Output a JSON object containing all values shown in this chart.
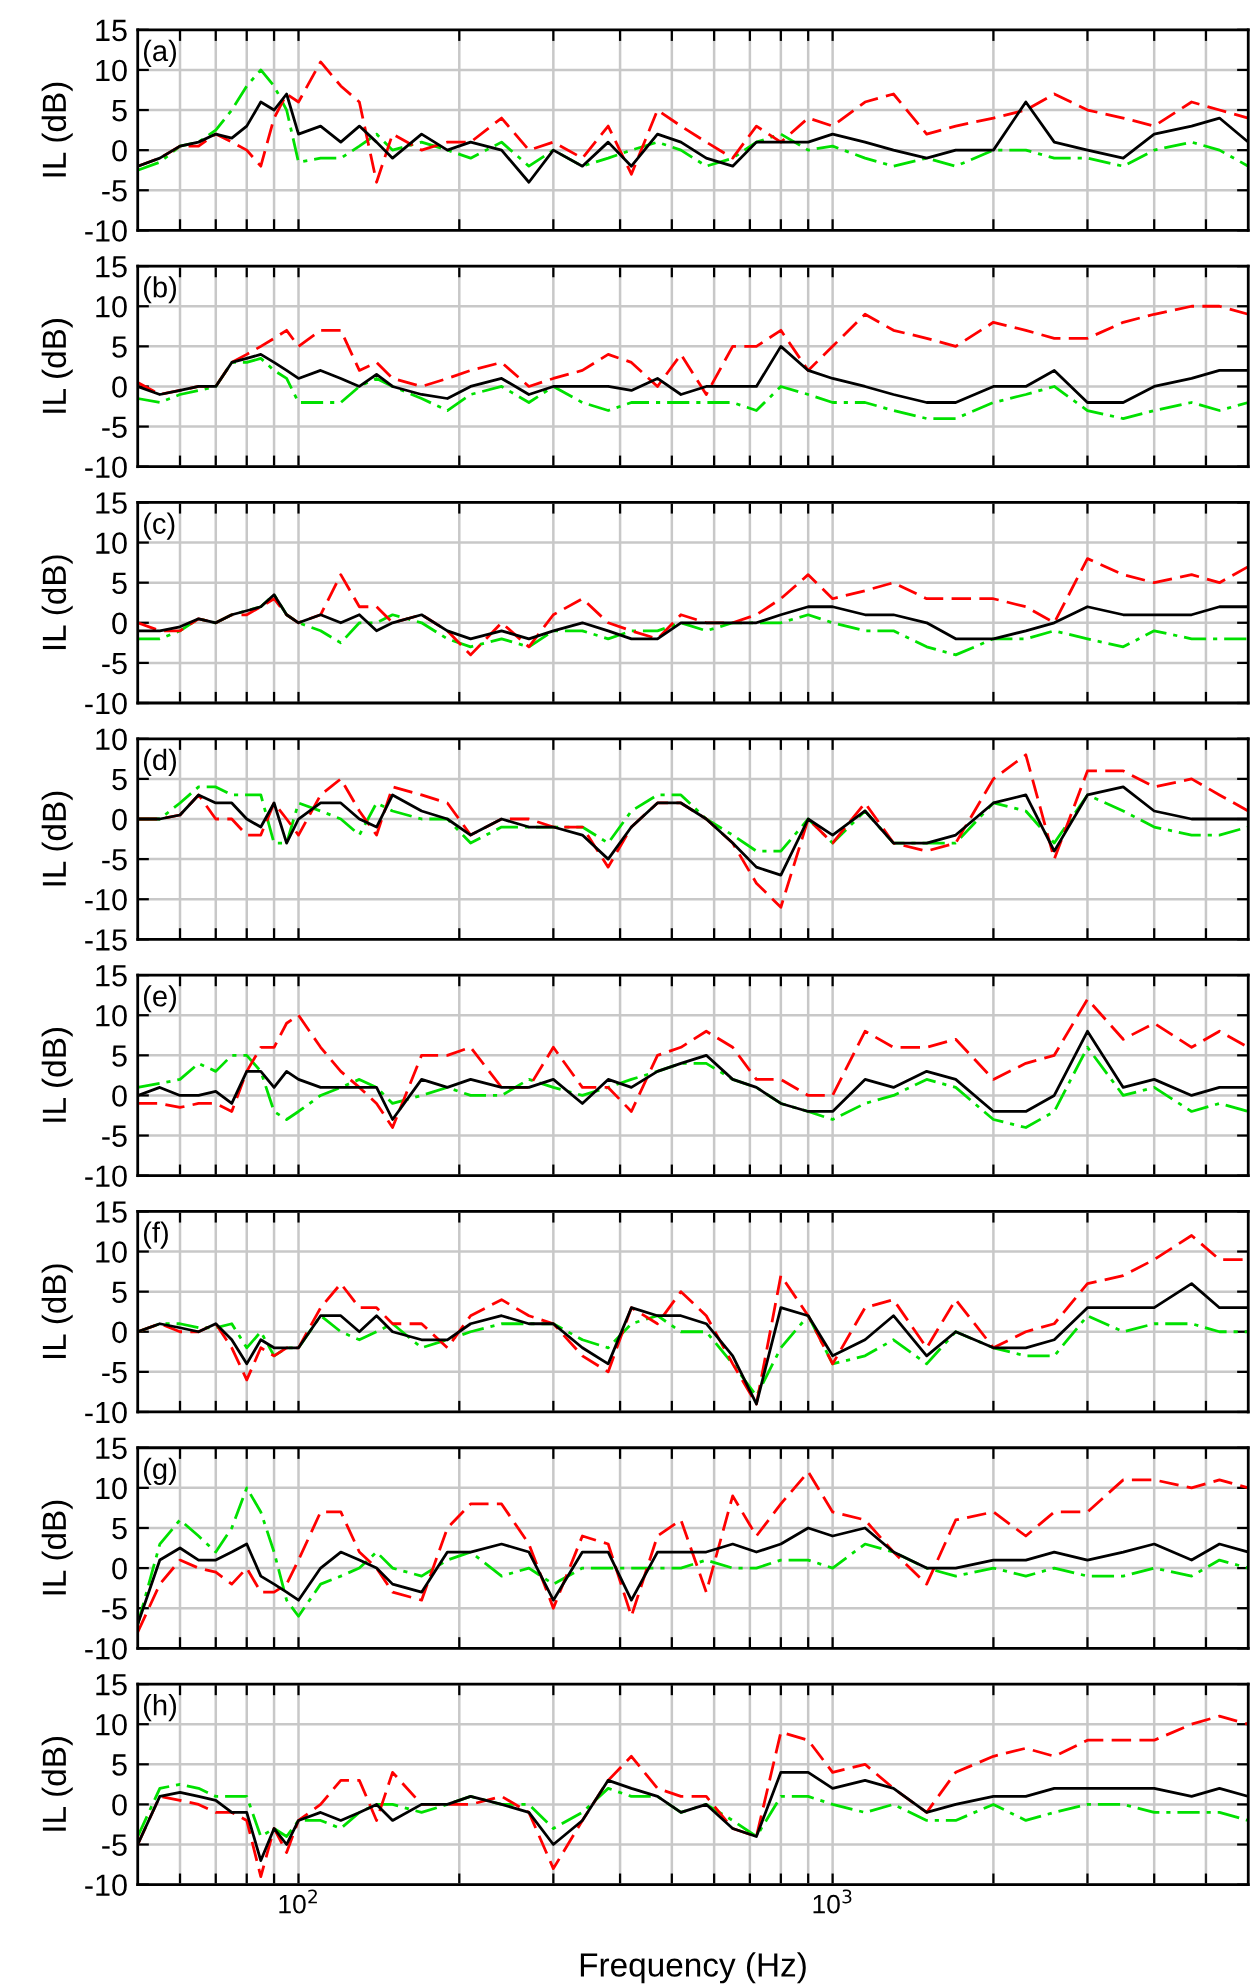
{
  "chart_data": [
    {
      "type": "line",
      "annotations": [
        "(a)"
      ],
      "ylabel": "IL (dB)",
      "log": "x",
      "grid": true,
      "tick_labels": "y",
      "xlim": [
        50,
        6000
      ],
      "ylim": [
        -10,
        15
      ],
      "yticks": [
        -10,
        -5,
        0,
        5,
        10,
        15
      ],
      "xticks": [
        60,
        70,
        80,
        90,
        100,
        200,
        300,
        400,
        500,
        600,
        700,
        800,
        900,
        1000,
        2000,
        3000,
        4000,
        5000
      ],
      "x": [
        50,
        55,
        60,
        65,
        70,
        75,
        80,
        85,
        90,
        95,
        100,
        110,
        120,
        130,
        140,
        150,
        170,
        190,
        210,
        240,
        270,
        300,
        340,
        380,
        420,
        470,
        520,
        580,
        650,
        720,
        800,
        900,
        1000,
        1150,
        1300,
        1500,
        1700,
        2000,
        2300,
        2600,
        3000,
        3500,
        4000,
        4700,
        5300,
        6000
      ],
      "series": [
        {
          "color": "#00e000",
          "line_style": "dashdot",
          "values": [
            -2.5,
            -1.5,
            0.5,
            1,
            2.5,
            5,
            8,
            10,
            8,
            5,
            -1.5,
            -1,
            -1,
            0.5,
            2,
            0,
            1,
            0,
            -1,
            1,
            -2,
            0,
            -2,
            -1,
            0,
            1,
            0,
            -2,
            -1,
            1,
            2,
            0,
            0.5,
            -1,
            -2,
            -1,
            -2,
            0,
            0,
            -1,
            -1,
            -2,
            0,
            1,
            0,
            -2
          ]
        },
        {
          "color": "#ff0000",
          "line_style": "dashed",
          "values": [
            -2,
            -1,
            0.5,
            0.5,
            2,
            1,
            0,
            -2,
            4,
            7,
            6,
            11,
            8,
            6,
            -4,
            2,
            0,
            1,
            1,
            4,
            0,
            1,
            -1,
            3,
            -3,
            5,
            3,
            1,
            -1,
            3,
            1,
            4,
            3,
            6,
            7,
            2,
            3,
            4,
            5,
            7,
            5,
            4,
            3,
            6,
            5,
            4
          ]
        },
        {
          "color": "#000000",
          "line_style": "solid",
          "values": [
            -2,
            -1,
            0.5,
            1,
            2,
            1.5,
            3,
            6,
            5,
            7,
            2,
            3,
            1,
            3,
            1,
            -1,
            2,
            0,
            1,
            0,
            -4,
            0,
            -2,
            1,
            -2,
            2,
            1,
            -1,
            -2,
            1,
            1,
            1,
            2,
            1,
            0,
            -1,
            0,
            0,
            6,
            1,
            0,
            -1,
            2,
            3,
            4,
            1
          ]
        }
      ]
    },
    {
      "type": "line",
      "annotations": [
        "(b)"
      ],
      "ylabel": "IL (dB)",
      "log": "x",
      "grid": true,
      "tick_labels": "y",
      "xlim": [
        50,
        6000
      ],
      "ylim": [
        -10,
        15
      ],
      "yticks": [
        -10,
        -5,
        0,
        5,
        10,
        15
      ],
      "xticks": [
        60,
        70,
        80,
        90,
        100,
        200,
        300,
        400,
        500,
        600,
        700,
        800,
        900,
        1000,
        2000,
        3000,
        4000,
        5000
      ],
      "x": [
        50,
        55,
        60,
        65,
        70,
        75,
        80,
        85,
        90,
        95,
        100,
        110,
        120,
        130,
        140,
        150,
        170,
        190,
        210,
        240,
        270,
        300,
        340,
        380,
        420,
        470,
        520,
        580,
        650,
        720,
        800,
        900,
        1000,
        1150,
        1300,
        1500,
        1700,
        2000,
        2300,
        2600,
        3000,
        3500,
        4000,
        4700,
        5300,
        6000
      ],
      "series": [
        {
          "color": "#00e000",
          "line_style": "dashdot",
          "values": [
            -1.5,
            -2,
            -1,
            -0.5,
            0,
            3,
            3,
            3.5,
            2,
            1,
            -2,
            -2,
            -2,
            0,
            1,
            0,
            -1.5,
            -3,
            -1,
            0,
            -2,
            0,
            -2,
            -3,
            -2,
            -2,
            -2,
            -2,
            -2,
            -3,
            0,
            -1,
            -2,
            -2,
            -3,
            -4,
            -4,
            -2,
            -1,
            0,
            -3,
            -4,
            -3,
            -2,
            -3,
            -2
          ]
        },
        {
          "color": "#ff0000",
          "line_style": "dashed",
          "values": [
            0.5,
            -1,
            -0.5,
            0,
            0,
            3,
            4,
            5,
            6,
            7,
            5,
            7,
            7,
            2,
            3,
            1,
            0,
            1,
            2,
            3,
            0,
            1,
            2,
            4,
            3,
            0,
            4,
            -1,
            5,
            5,
            7,
            2,
            5,
            9,
            7,
            6,
            5,
            8,
            7,
            6,
            6,
            8,
            9,
            10,
            10,
            9
          ]
        },
        {
          "color": "#000000",
          "line_style": "solid",
          "values": [
            0,
            -1,
            -0.5,
            0,
            0,
            3,
            3.5,
            4,
            3,
            2,
            1,
            2,
            1,
            0,
            1.5,
            0,
            -1,
            -1.5,
            0,
            1,
            -1,
            0,
            0,
            0,
            -0.5,
            1,
            -1,
            0,
            0,
            0,
            5,
            2,
            1,
            0,
            -1,
            -2,
            -2,
            0,
            0,
            2,
            -2,
            -2,
            0,
            1,
            2,
            2
          ]
        }
      ]
    },
    {
      "type": "line",
      "annotations": [
        "(c)"
      ],
      "ylabel": "IL (dB)",
      "log": "x",
      "grid": true,
      "tick_labels": "y",
      "xlim": [
        50,
        6000
      ],
      "ylim": [
        -10,
        15
      ],
      "yticks": [
        -10,
        -5,
        0,
        5,
        10,
        15
      ],
      "xticks": [
        60,
        70,
        80,
        90,
        100,
        200,
        300,
        400,
        500,
        600,
        700,
        800,
        900,
        1000,
        2000,
        3000,
        4000,
        5000
      ],
      "x": [
        50,
        55,
        60,
        65,
        70,
        75,
        80,
        85,
        90,
        95,
        100,
        110,
        120,
        130,
        140,
        150,
        170,
        190,
        210,
        240,
        270,
        300,
        340,
        380,
        420,
        470,
        520,
        580,
        650,
        720,
        800,
        900,
        1000,
        1150,
        1300,
        1500,
        1700,
        2000,
        2300,
        2600,
        3000,
        3500,
        4000,
        4700,
        5300,
        6000
      ],
      "series": [
        {
          "color": "#00e000",
          "line_style": "dashdot",
          "values": [
            -2,
            -2,
            -1,
            0.5,
            0,
            1,
            1.5,
            2,
            3.5,
            1,
            0,
            -1,
            -2.5,
            0,
            0,
            1,
            0,
            -2,
            -3,
            -2,
            -3,
            -1,
            -1,
            -2,
            -1,
            -1,
            0,
            -1,
            0,
            0,
            0,
            1,
            0,
            -1,
            -1,
            -3,
            -4,
            -2,
            -2,
            -1,
            -2,
            -3,
            -1,
            -2,
            -2,
            -2
          ]
        },
        {
          "color": "#ff0000",
          "line_style": "dashed",
          "values": [
            0,
            -1,
            -1,
            0.5,
            0,
            1,
            1,
            2,
            3,
            1,
            0,
            1,
            6,
            2,
            2,
            0,
            1,
            -1,
            -4,
            0,
            -3,
            1,
            3,
            0,
            -1,
            -2,
            1,
            0,
            0,
            1,
            3,
            6,
            3,
            4,
            5,
            3,
            3,
            3,
            2,
            0,
            8,
            6,
            5,
            6,
            5,
            7
          ]
        },
        {
          "color": "#000000",
          "line_style": "solid",
          "values": [
            -1,
            -1,
            -0.5,
            0.5,
            0,
            1,
            1.5,
            2,
            3.5,
            1,
            0,
            1,
            0,
            1,
            -1,
            0,
            1,
            -1,
            -2,
            -1,
            -2,
            -1,
            0,
            -1,
            -2,
            -2,
            0,
            0,
            0,
            0,
            1,
            2,
            2,
            1,
            1,
            0,
            -2,
            -2,
            -1,
            0,
            2,
            1,
            1,
            1,
            2,
            2
          ]
        }
      ]
    },
    {
      "type": "line",
      "annotations": [
        "(d)"
      ],
      "ylabel": "IL (dB)",
      "log": "x",
      "grid": true,
      "tick_labels": "y",
      "xlim": [
        50,
        6000
      ],
      "ylim": [
        -15,
        10
      ],
      "yticks": [
        -15,
        -10,
        -5,
        0,
        5,
        10
      ],
      "xticks": [
        60,
        70,
        80,
        90,
        100,
        200,
        300,
        400,
        500,
        600,
        700,
        800,
        900,
        1000,
        2000,
        3000,
        4000,
        5000
      ],
      "x": [
        50,
        55,
        60,
        65,
        70,
        75,
        80,
        85,
        90,
        95,
        100,
        110,
        120,
        130,
        140,
        150,
        170,
        190,
        210,
        240,
        270,
        300,
        340,
        380,
        420,
        470,
        520,
        580,
        650,
        720,
        800,
        900,
        1000,
        1150,
        1300,
        1500,
        1700,
        2000,
        2300,
        2600,
        3000,
        3500,
        4000,
        4700,
        5300,
        6000
      ],
      "series": [
        {
          "color": "#00e000",
          "line_style": "dashdot",
          "values": [
            0,
            0,
            2,
            4,
            4,
            3,
            3,
            3,
            -3,
            -3,
            2,
            1,
            0,
            -2,
            2,
            1,
            0,
            0,
            -3,
            -1,
            -1,
            -1,
            -1,
            -3,
            1,
            3,
            3,
            0,
            -2,
            -4,
            -4,
            0,
            -3,
            1,
            -3,
            -3,
            -3,
            2,
            1,
            -3,
            3,
            1,
            -1,
            -2,
            -2,
            -1
          ]
        },
        {
          "color": "#ff0000",
          "line_style": "dashed",
          "values": [
            0,
            0,
            0.5,
            3,
            0,
            0,
            -2,
            -2,
            2,
            0,
            -2,
            3,
            5,
            1,
            -2,
            4,
            3,
            2,
            -2,
            0,
            0,
            -1,
            -1,
            -6,
            -1,
            2,
            2,
            0,
            -3,
            -8,
            -11,
            0,
            -3,
            2,
            -3,
            -4,
            -3,
            5,
            8,
            -5,
            6,
            6,
            4,
            5,
            3,
            1
          ]
        },
        {
          "color": "#000000",
          "line_style": "solid",
          "values": [
            0,
            0,
            0.5,
            3,
            2,
            2,
            0,
            -1,
            2,
            -3,
            0,
            2,
            2,
            0,
            -1,
            3,
            1,
            0,
            -2,
            0,
            -1,
            -1,
            -2,
            -5,
            -1,
            2,
            2,
            0,
            -3,
            -6,
            -7,
            0,
            -2,
            1,
            -3,
            -3,
            -2,
            2,
            3,
            -4,
            3,
            4,
            1,
            0,
            0,
            0
          ]
        }
      ]
    },
    {
      "type": "line",
      "annotations": [
        "(e)"
      ],
      "ylabel": "IL (dB)",
      "log": "x",
      "grid": true,
      "tick_labels": "y",
      "xlim": [
        50,
        6000
      ],
      "ylim": [
        -10,
        15
      ],
      "yticks": [
        -10,
        -5,
        0,
        5,
        10,
        15
      ],
      "xticks": [
        60,
        70,
        80,
        90,
        100,
        200,
        300,
        400,
        500,
        600,
        700,
        800,
        900,
        1000,
        2000,
        3000,
        4000,
        5000
      ],
      "x": [
        50,
        55,
        60,
        65,
        70,
        75,
        80,
        85,
        90,
        95,
        100,
        110,
        120,
        130,
        140,
        150,
        170,
        190,
        210,
        240,
        270,
        300,
        340,
        380,
        420,
        470,
        520,
        580,
        650,
        720,
        800,
        900,
        1000,
        1150,
        1300,
        1500,
        1700,
        2000,
        2300,
        2600,
        3000,
        3500,
        4000,
        4700,
        5300,
        6000
      ],
      "series": [
        {
          "color": "#00e000",
          "line_style": "dashdot",
          "values": [
            1,
            1.5,
            2,
            4,
            3,
            5,
            5,
            3,
            -2,
            -3,
            -2,
            0,
            1,
            2,
            1,
            -1,
            0,
            1,
            0,
            0,
            2,
            1,
            0,
            1,
            2,
            3,
            4,
            4,
            2,
            1,
            -1,
            -2,
            -3,
            -1,
            0,
            2,
            1,
            -3,
            -4,
            -2,
            6,
            0,
            1,
            -2,
            -1,
            -2
          ]
        },
        {
          "color": "#ff0000",
          "line_style": "dashed",
          "values": [
            -1,
            -1,
            -1.5,
            -1,
            -1,
            -2,
            3,
            6,
            6,
            9,
            10,
            6,
            3,
            1,
            -1,
            -4,
            5,
            5,
            6,
            1,
            1,
            6,
            1,
            1,
            -2,
            5,
            6,
            8,
            6,
            2,
            2,
            0,
            0,
            8,
            6,
            6,
            7,
            2,
            4,
            5,
            12,
            7,
            9,
            6,
            8,
            6
          ]
        },
        {
          "color": "#000000",
          "line_style": "solid",
          "values": [
            0,
            1,
            0,
            0,
            0.5,
            -1,
            3,
            3,
            1,
            3,
            2,
            1,
            1,
            1,
            1,
            -3,
            2,
            1,
            2,
            1,
            1,
            2,
            -1,
            2,
            1,
            3,
            4,
            5,
            2,
            1,
            -1,
            -2,
            -2,
            2,
            1,
            3,
            2,
            -2,
            -2,
            0,
            8,
            1,
            2,
            0,
            1,
            1
          ]
        }
      ]
    },
    {
      "type": "line",
      "annotations": [
        "(f)"
      ],
      "ylabel": "IL (dB)",
      "log": "x",
      "grid": true,
      "tick_labels": "y",
      "xlim": [
        50,
        6000
      ],
      "ylim": [
        -10,
        15
      ],
      "yticks": [
        -10,
        -5,
        0,
        5,
        10,
        15
      ],
      "xticks": [
        60,
        70,
        80,
        90,
        100,
        200,
        300,
        400,
        500,
        600,
        700,
        800,
        900,
        1000,
        2000,
        3000,
        4000,
        5000
      ],
      "x": [
        50,
        55,
        60,
        65,
        70,
        75,
        80,
        85,
        90,
        95,
        100,
        110,
        120,
        130,
        140,
        150,
        170,
        190,
        210,
        240,
        270,
        300,
        340,
        380,
        420,
        470,
        520,
        580,
        650,
        720,
        800,
        900,
        1000,
        1150,
        1300,
        1500,
        1700,
        2000,
        2300,
        2600,
        3000,
        3500,
        4000,
        4700,
        5300,
        6000
      ],
      "series": [
        {
          "color": "#00e000",
          "line_style": "dashdot",
          "values": [
            0,
            1,
            1,
            0.5,
            0.5,
            1,
            -2,
            0,
            -3,
            -2,
            -2,
            2,
            0,
            -1,
            0,
            1,
            -2,
            -1,
            0,
            1,
            1,
            1,
            -1,
            -2,
            1,
            2,
            0,
            0,
            -4,
            -8,
            -2,
            2,
            -4,
            -3,
            -1,
            -4,
            0,
            -2,
            -3,
            -3,
            2,
            0,
            1,
            1,
            0,
            0
          ]
        },
        {
          "color": "#ff0000",
          "line_style": "dashed",
          "values": [
            0,
            1,
            0,
            0,
            1,
            -2,
            -6,
            -2,
            -3,
            -2,
            -2,
            3,
            6,
            3,
            3,
            1,
            1,
            -2,
            2,
            4,
            2,
            1,
            -3,
            -5,
            3,
            1,
            5,
            2,
            -4,
            -9,
            7,
            2,
            -4,
            3,
            4,
            -2,
            4,
            -2,
            0,
            1,
            6,
            7,
            9,
            12,
            9,
            9
          ]
        },
        {
          "color": "#000000",
          "line_style": "solid",
          "values": [
            0,
            1,
            0.5,
            0,
            1,
            -1,
            -4,
            -1,
            -2,
            -2,
            -2,
            2,
            2,
            0,
            2,
            0,
            -1,
            -1,
            1,
            2,
            1,
            1,
            -2,
            -4,
            3,
            2,
            2,
            1,
            -3,
            -9,
            3,
            2,
            -3,
            -1,
            2,
            -3,
            0,
            -2,
            -2,
            -1,
            3,
            3,
            3,
            6,
            3,
            3
          ]
        }
      ]
    },
    {
      "type": "line",
      "annotations": [
        "(g)"
      ],
      "ylabel": "IL (dB)",
      "log": "x",
      "grid": true,
      "tick_labels": "y",
      "xlim": [
        50,
        6000
      ],
      "ylim": [
        -10,
        15
      ],
      "yticks": [
        -10,
        -5,
        0,
        5,
        10,
        15
      ],
      "xticks": [
        60,
        70,
        80,
        90,
        100,
        200,
        300,
        400,
        500,
        600,
        700,
        800,
        900,
        1000,
        2000,
        3000,
        4000,
        5000
      ],
      "x": [
        50,
        55,
        60,
        65,
        70,
        75,
        80,
        85,
        90,
        95,
        100,
        110,
        120,
        130,
        140,
        150,
        170,
        190,
        210,
        240,
        270,
        300,
        340,
        380,
        420,
        470,
        520,
        580,
        650,
        720,
        800,
        900,
        1000,
        1150,
        1300,
        1500,
        1700,
        2000,
        2300,
        2600,
        3000,
        3500,
        4000,
        4700,
        5300,
        6000
      ],
      "series": [
        {
          "color": "#00e000",
          "line_style": "dashdot",
          "values": [
            -7,
            3,
            6,
            4,
            2,
            5,
            10,
            7,
            2,
            -4,
            -6,
            -2,
            -1,
            0,
            2,
            0,
            -1,
            1,
            2,
            -1,
            0,
            -2,
            0,
            0,
            0,
            0,
            0,
            1,
            0,
            0,
            1,
            1,
            0,
            3,
            2,
            0,
            -1,
            0,
            -1,
            0,
            -1,
            -1,
            0,
            -1,
            1,
            0
          ]
        },
        {
          "color": "#ff0000",
          "line_style": "dashed",
          "values": [
            -8,
            -2,
            1,
            0,
            -0.5,
            -2,
            0,
            -3,
            -3,
            -2,
            1,
            7,
            7,
            2,
            0,
            -3,
            -4,
            5,
            8,
            8,
            3,
            -5,
            4,
            3,
            -6,
            4,
            6,
            -3,
            9,
            4,
            8,
            12,
            7,
            6,
            2,
            -2,
            6,
            7,
            4,
            7,
            7,
            11,
            11,
            10,
            11,
            10
          ]
        },
        {
          "color": "#000000",
          "line_style": "solid",
          "values": [
            -7,
            1,
            2.5,
            1,
            1,
            2,
            3,
            -1,
            -2,
            -3,
            -4,
            0,
            2,
            1,
            0,
            -2,
            -3,
            2,
            2,
            3,
            2,
            -4,
            2,
            2,
            -4,
            2,
            2,
            2,
            3,
            2,
            3,
            5,
            4,
            5,
            2,
            0,
            0,
            1,
            1,
            2,
            1,
            2,
            3,
            1,
            3,
            2
          ]
        }
      ]
    },
    {
      "type": "line",
      "annotations": [
        "(h)"
      ],
      "xlabel": "Frequency (Hz)",
      "ylabel": "IL (dB)",
      "log": "x",
      "grid": true,
      "xlim": [
        50,
        6000
      ],
      "ylim": [
        -10,
        15
      ],
      "yticks": [
        -10,
        -5,
        0,
        5,
        10,
        15
      ],
      "xticks": [
        {
          "value": 60,
          "label": null
        },
        {
          "value": 70,
          "label": null
        },
        {
          "value": 80,
          "label": null
        },
        {
          "value": 90,
          "label": null
        },
        {
          "value": 100,
          "label": "10$^{2}$"
        },
        {
          "value": 200,
          "label": null
        },
        {
          "value": 300,
          "label": null
        },
        {
          "value": 400,
          "label": null
        },
        {
          "value": 500,
          "label": null
        },
        {
          "value": 600,
          "label": null
        },
        {
          "value": 700,
          "label": null
        },
        {
          "value": 800,
          "label": null
        },
        {
          "value": 900,
          "label": null
        },
        {
          "value": 1000,
          "label": "10$^{3}$"
        },
        {
          "value": 2000,
          "label": null
        },
        {
          "value": 3000,
          "label": null
        },
        {
          "value": 4000,
          "label": null
        },
        {
          "value": 5000,
          "label": null
        }
      ],
      "x": [
        50,
        55,
        60,
        65,
        70,
        75,
        80,
        85,
        90,
        95,
        100,
        110,
        120,
        130,
        140,
        150,
        170,
        190,
        210,
        240,
        270,
        300,
        340,
        380,
        420,
        470,
        520,
        580,
        650,
        720,
        800,
        900,
        1000,
        1150,
        1300,
        1500,
        1700,
        2000,
        2300,
        2600,
        3000,
        3500,
        4000,
        4700,
        5300,
        6000
      ],
      "series": [
        {
          "color": "#00e000",
          "line_style": "dashdot",
          "values": [
            -4,
            2,
            2.5,
            2,
            1,
            1,
            1,
            -4,
            -3,
            -4,
            -2,
            -2,
            -3,
            -1,
            0,
            0,
            -1,
            0,
            1,
            0,
            0,
            -3,
            -1,
            2,
            1,
            1,
            -1,
            0,
            -2,
            -4,
            1,
            1,
            0,
            -1,
            0,
            -2,
            -2,
            0,
            -2,
            -1,
            0,
            0,
            -1,
            -1,
            -1,
            -2
          ]
        },
        {
          "color": "#ff0000",
          "line_style": "dashed",
          "values": [
            -5,
            1,
            0.5,
            0,
            -1,
            -1,
            -2,
            -9,
            -3,
            -6,
            -2,
            0,
            3,
            3,
            -2,
            4,
            0,
            0,
            0,
            1,
            -1,
            -8,
            -2,
            3,
            6,
            2,
            1,
            1,
            -3,
            -4,
            9,
            8,
            4,
            5,
            2,
            -1,
            4,
            6,
            7,
            6,
            8,
            8,
            8,
            10,
            11,
            10
          ]
        },
        {
          "color": "#000000",
          "line_style": "solid",
          "values": [
            -5,
            1,
            1.5,
            1,
            0.5,
            -1,
            -1,
            -7,
            -3,
            -5,
            -2,
            -1,
            -2,
            -1,
            0,
            -2,
            0,
            0,
            1,
            0,
            -1,
            -5,
            -2,
            3,
            2,
            1,
            -1,
            0,
            -3,
            -4,
            4,
            4,
            2,
            3,
            2,
            -1,
            0,
            1,
            1,
            2,
            2,
            2,
            2,
            1,
            2,
            1
          ]
        }
      ]
    }
  ]
}
